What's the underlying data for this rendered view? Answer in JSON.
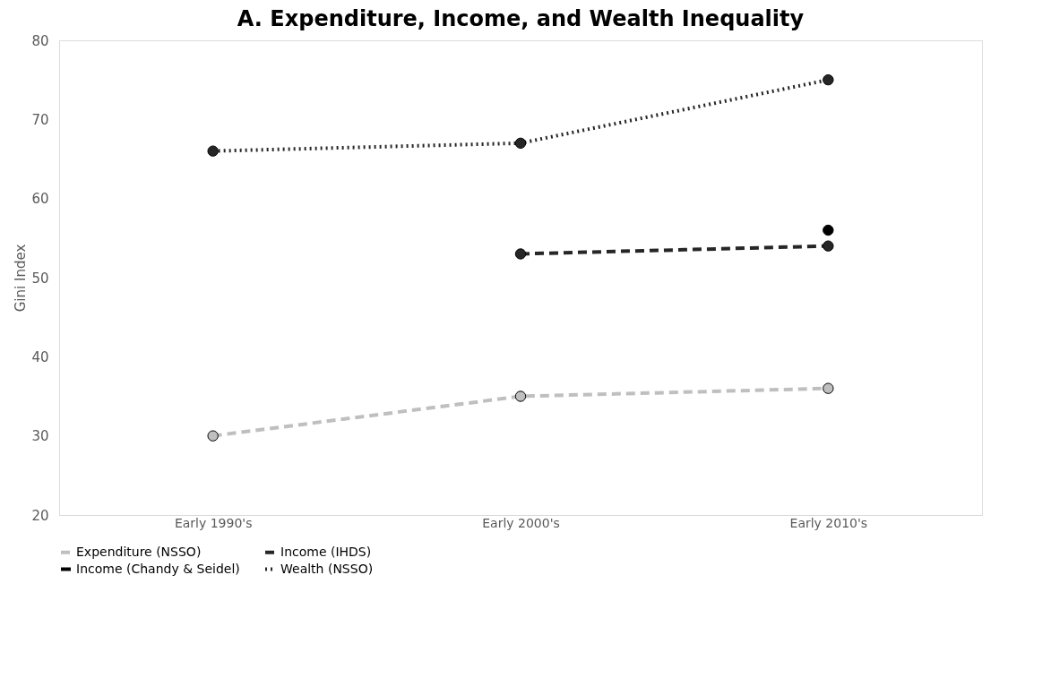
{
  "chart_data": {
    "type": "line",
    "title": "A. Expenditure, Income, and Wealth Inequality",
    "ylabel": "Gini Index",
    "categories": [
      "Early 1990's",
      "Early 2000's",
      "Early 2010's"
    ],
    "series": [
      {
        "name": "Expenditure (NSSO)",
        "color": "#bfbfbf",
        "line_style": "dashed",
        "values": [
          30,
          35,
          36
        ]
      },
      {
        "name": "Income (IHDS)",
        "color": "#262626",
        "line_style": "dashed",
        "values": [
          null,
          53,
          54
        ]
      },
      {
        "name": "Income (Chandy & Seidel)",
        "color": "#000000",
        "line_style": "solid",
        "values": [
          null,
          null,
          56
        ]
      },
      {
        "name": "Wealth (NSSO)",
        "color": "#262626",
        "line_style": "dotted",
        "values": [
          66,
          67,
          75
        ]
      }
    ],
    "ylim": [
      20,
      80
    ],
    "yticks": [
      20,
      30,
      40,
      50,
      60,
      70,
      80
    ],
    "grid": false,
    "legend": "bottom",
    "marker": "circle"
  }
}
